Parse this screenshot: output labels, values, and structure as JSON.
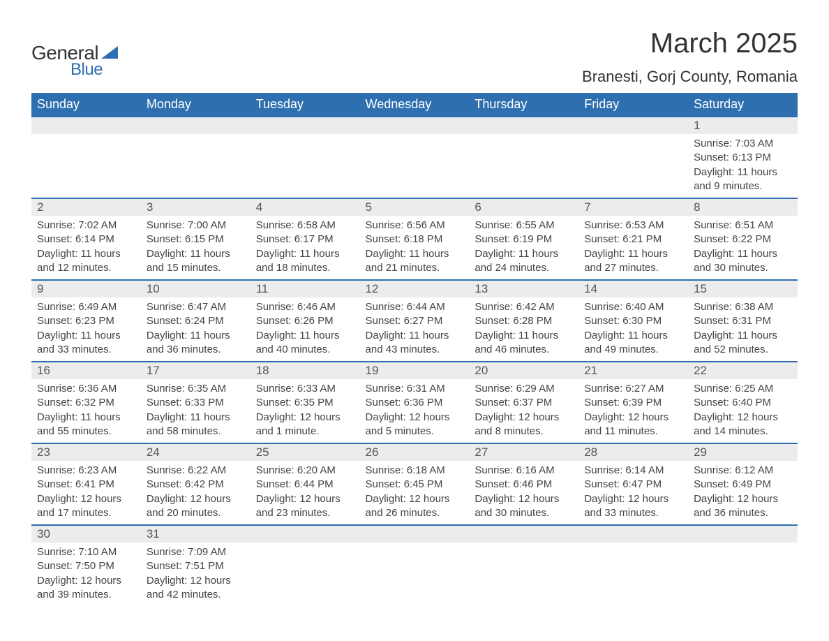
{
  "logo": {
    "text1": "General",
    "text2": "Blue"
  },
  "title": "March 2025",
  "subtitle": "Branesti, Gorj County, Romania",
  "colors": {
    "header_bg": "#2e6fb0",
    "header_text": "#ffffff",
    "daynum_bg": "#ececec",
    "row_border": "#2e6fb0",
    "body_text": "#444444",
    "page_bg": "#ffffff"
  },
  "fonts": {
    "title_size": 40,
    "subtitle_size": 22,
    "header_size": 18,
    "daynum_size": 17,
    "body_size": 15
  },
  "day_headers": [
    "Sunday",
    "Monday",
    "Tuesday",
    "Wednesday",
    "Thursday",
    "Friday",
    "Saturday"
  ],
  "weeks": [
    [
      null,
      null,
      null,
      null,
      null,
      null,
      {
        "d": "1",
        "sr": "Sunrise: 7:03 AM",
        "ss": "Sunset: 6:13 PM",
        "dl": "Daylight: 11 hours and 9 minutes."
      }
    ],
    [
      {
        "d": "2",
        "sr": "Sunrise: 7:02 AM",
        "ss": "Sunset: 6:14 PM",
        "dl": "Daylight: 11 hours and 12 minutes."
      },
      {
        "d": "3",
        "sr": "Sunrise: 7:00 AM",
        "ss": "Sunset: 6:15 PM",
        "dl": "Daylight: 11 hours and 15 minutes."
      },
      {
        "d": "4",
        "sr": "Sunrise: 6:58 AM",
        "ss": "Sunset: 6:17 PM",
        "dl": "Daylight: 11 hours and 18 minutes."
      },
      {
        "d": "5",
        "sr": "Sunrise: 6:56 AM",
        "ss": "Sunset: 6:18 PM",
        "dl": "Daylight: 11 hours and 21 minutes."
      },
      {
        "d": "6",
        "sr": "Sunrise: 6:55 AM",
        "ss": "Sunset: 6:19 PM",
        "dl": "Daylight: 11 hours and 24 minutes."
      },
      {
        "d": "7",
        "sr": "Sunrise: 6:53 AM",
        "ss": "Sunset: 6:21 PM",
        "dl": "Daylight: 11 hours and 27 minutes."
      },
      {
        "d": "8",
        "sr": "Sunrise: 6:51 AM",
        "ss": "Sunset: 6:22 PM",
        "dl": "Daylight: 11 hours and 30 minutes."
      }
    ],
    [
      {
        "d": "9",
        "sr": "Sunrise: 6:49 AM",
        "ss": "Sunset: 6:23 PM",
        "dl": "Daylight: 11 hours and 33 minutes."
      },
      {
        "d": "10",
        "sr": "Sunrise: 6:47 AM",
        "ss": "Sunset: 6:24 PM",
        "dl": "Daylight: 11 hours and 36 minutes."
      },
      {
        "d": "11",
        "sr": "Sunrise: 6:46 AM",
        "ss": "Sunset: 6:26 PM",
        "dl": "Daylight: 11 hours and 40 minutes."
      },
      {
        "d": "12",
        "sr": "Sunrise: 6:44 AM",
        "ss": "Sunset: 6:27 PM",
        "dl": "Daylight: 11 hours and 43 minutes."
      },
      {
        "d": "13",
        "sr": "Sunrise: 6:42 AM",
        "ss": "Sunset: 6:28 PM",
        "dl": "Daylight: 11 hours and 46 minutes."
      },
      {
        "d": "14",
        "sr": "Sunrise: 6:40 AM",
        "ss": "Sunset: 6:30 PM",
        "dl": "Daylight: 11 hours and 49 minutes."
      },
      {
        "d": "15",
        "sr": "Sunrise: 6:38 AM",
        "ss": "Sunset: 6:31 PM",
        "dl": "Daylight: 11 hours and 52 minutes."
      }
    ],
    [
      {
        "d": "16",
        "sr": "Sunrise: 6:36 AM",
        "ss": "Sunset: 6:32 PM",
        "dl": "Daylight: 11 hours and 55 minutes."
      },
      {
        "d": "17",
        "sr": "Sunrise: 6:35 AM",
        "ss": "Sunset: 6:33 PM",
        "dl": "Daylight: 11 hours and 58 minutes."
      },
      {
        "d": "18",
        "sr": "Sunrise: 6:33 AM",
        "ss": "Sunset: 6:35 PM",
        "dl": "Daylight: 12 hours and 1 minute."
      },
      {
        "d": "19",
        "sr": "Sunrise: 6:31 AM",
        "ss": "Sunset: 6:36 PM",
        "dl": "Daylight: 12 hours and 5 minutes."
      },
      {
        "d": "20",
        "sr": "Sunrise: 6:29 AM",
        "ss": "Sunset: 6:37 PM",
        "dl": "Daylight: 12 hours and 8 minutes."
      },
      {
        "d": "21",
        "sr": "Sunrise: 6:27 AM",
        "ss": "Sunset: 6:39 PM",
        "dl": "Daylight: 12 hours and 11 minutes."
      },
      {
        "d": "22",
        "sr": "Sunrise: 6:25 AM",
        "ss": "Sunset: 6:40 PM",
        "dl": "Daylight: 12 hours and 14 minutes."
      }
    ],
    [
      {
        "d": "23",
        "sr": "Sunrise: 6:23 AM",
        "ss": "Sunset: 6:41 PM",
        "dl": "Daylight: 12 hours and 17 minutes."
      },
      {
        "d": "24",
        "sr": "Sunrise: 6:22 AM",
        "ss": "Sunset: 6:42 PM",
        "dl": "Daylight: 12 hours and 20 minutes."
      },
      {
        "d": "25",
        "sr": "Sunrise: 6:20 AM",
        "ss": "Sunset: 6:44 PM",
        "dl": "Daylight: 12 hours and 23 minutes."
      },
      {
        "d": "26",
        "sr": "Sunrise: 6:18 AM",
        "ss": "Sunset: 6:45 PM",
        "dl": "Daylight: 12 hours and 26 minutes."
      },
      {
        "d": "27",
        "sr": "Sunrise: 6:16 AM",
        "ss": "Sunset: 6:46 PM",
        "dl": "Daylight: 12 hours and 30 minutes."
      },
      {
        "d": "28",
        "sr": "Sunrise: 6:14 AM",
        "ss": "Sunset: 6:47 PM",
        "dl": "Daylight: 12 hours and 33 minutes."
      },
      {
        "d": "29",
        "sr": "Sunrise: 6:12 AM",
        "ss": "Sunset: 6:49 PM",
        "dl": "Daylight: 12 hours and 36 minutes."
      }
    ],
    [
      {
        "d": "30",
        "sr": "Sunrise: 7:10 AM",
        "ss": "Sunset: 7:50 PM",
        "dl": "Daylight: 12 hours and 39 minutes."
      },
      {
        "d": "31",
        "sr": "Sunrise: 7:09 AM",
        "ss": "Sunset: 7:51 PM",
        "dl": "Daylight: 12 hours and 42 minutes."
      },
      null,
      null,
      null,
      null,
      null
    ]
  ]
}
